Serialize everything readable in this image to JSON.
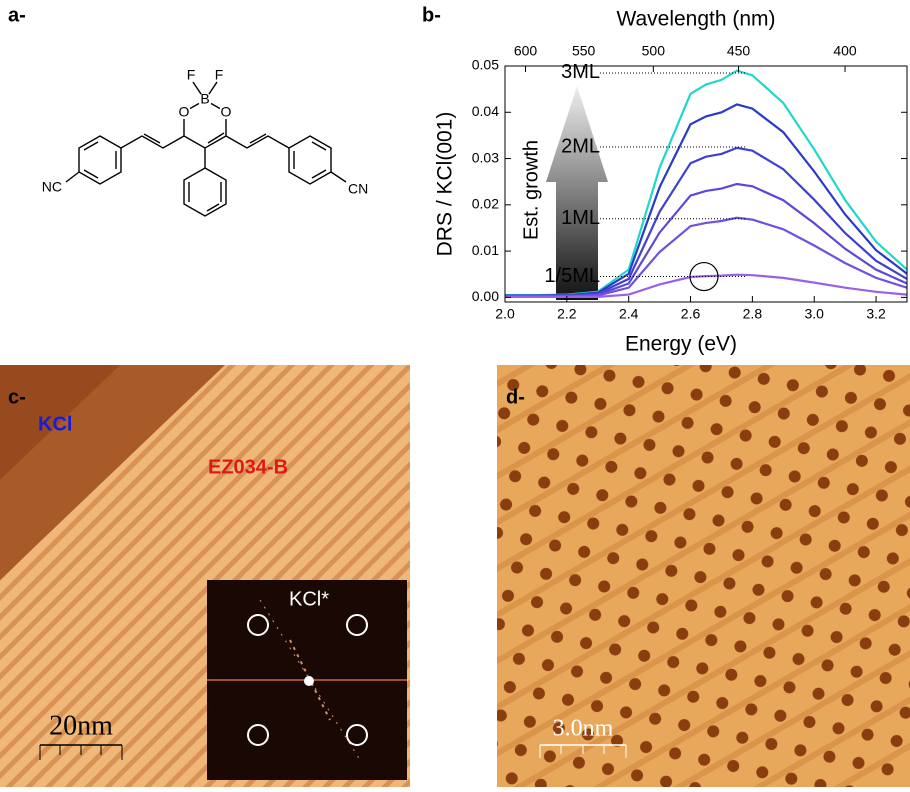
{
  "panels": {
    "a": {
      "label": "a-",
      "atoms": [
        "F",
        "F",
        "B",
        "O",
        "O",
        "NC",
        "CN"
      ]
    },
    "b": {
      "label": "b-"
    },
    "c": {
      "label": "c-",
      "region_labels": [
        "KCl",
        "EZ034-B"
      ],
      "inset_label": "KCl*",
      "scale_bar": "20nm"
    },
    "d": {
      "label": "d-",
      "scale_bar": "3.0nm"
    }
  },
  "chart_data": {
    "type": "line",
    "x_label": "Energy (eV)",
    "y_label": "DRS / KCl(001)",
    "x2_label": "Wavelength (nm)",
    "x": [
      2.0,
      2.1,
      2.2,
      2.3,
      2.4,
      2.5,
      2.6,
      2.65,
      2.7,
      2.75,
      2.8,
      2.9,
      3.0,
      3.1,
      3.2,
      3.3
    ],
    "series": [
      {
        "color": "#20d8c8",
        "values": [
          0.0005,
          0.0005,
          0.0006,
          0.0012,
          0.006,
          0.028,
          0.044,
          0.046,
          0.047,
          0.049,
          0.048,
          0.042,
          0.032,
          0.021,
          0.012,
          0.006
        ]
      },
      {
        "color": "#2a3ac8",
        "values": [
          0.0004,
          0.0004,
          0.0005,
          0.001,
          0.0051,
          0.0238,
          0.0374,
          0.0391,
          0.04,
          0.0417,
          0.0408,
          0.0357,
          0.0272,
          0.0179,
          0.0102,
          0.0051
        ]
      },
      {
        "color": "#4040d0",
        "values": [
          0.0003,
          0.0003,
          0.0004,
          0.0008,
          0.004,
          0.0185,
          0.029,
          0.0304,
          0.031,
          0.0323,
          0.0317,
          0.0277,
          0.0211,
          0.0139,
          0.0079,
          0.004
        ]
      },
      {
        "color": "#5a48d8",
        "values": [
          0.0003,
          0.0003,
          0.0003,
          0.0006,
          0.003,
          0.014,
          0.022,
          0.023,
          0.0235,
          0.0245,
          0.024,
          0.021,
          0.016,
          0.0105,
          0.006,
          0.003
        ]
      },
      {
        "color": "#7050e0",
        "values": [
          0.0002,
          0.0002,
          0.0002,
          0.0004,
          0.0021,
          0.0098,
          0.0154,
          0.0161,
          0.0165,
          0.0172,
          0.0168,
          0.0147,
          0.0112,
          0.0074,
          0.0042,
          0.0021
        ]
      },
      {
        "color": "#9a60e8",
        "values": [
          0.0001,
          0.0001,
          0.0001,
          0.0001,
          0.0006,
          0.0028,
          0.0044,
          0.0046,
          0.0047,
          0.0049,
          0.0048,
          0.0042,
          0.0032,
          0.0021,
          0.0012,
          0.0006
        ]
      }
    ],
    "xlim": [
      2.0,
      3.3
    ],
    "xticks": [
      {
        "value": 2.0,
        "label": "2.0"
      },
      2.2,
      2.4,
      2.6,
      2.8,
      {
        "value": 3.0,
        "label": "3.0"
      },
      3.2
    ],
    "ylim": [
      -0.001,
      0.05
    ],
    "yticks": [
      {
        "value": 0,
        "label": "0.00"
      },
      {
        "value": 0.01,
        "label": "0.01"
      },
      {
        "value": 0.02,
        "label": "0.02"
      },
      {
        "value": 0.03,
        "label": "0.03"
      },
      {
        "value": 0.04,
        "label": "0.04"
      },
      {
        "value": 0.05,
        "label": "0.05"
      }
    ],
    "x2ticks": [
      600,
      550,
      500,
      450,
      400
    ],
    "arrow_label": "Est. growth",
    "annotations": [
      {
        "text": "3ML",
        "y": 0.0485
      },
      {
        "text": "2ML",
        "y": 0.0325
      },
      {
        "text": "1ML",
        "y": 0.017
      },
      {
        "text": "1/5ML",
        "y": 0.0045
      }
    ]
  }
}
